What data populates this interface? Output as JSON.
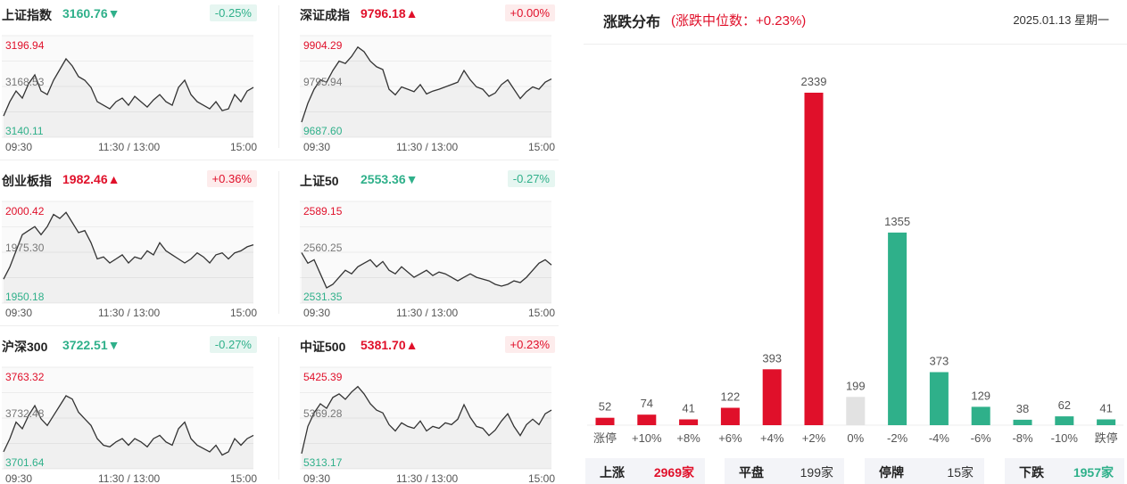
{
  "panels": [
    {
      "name": "上证指数",
      "value": "3160.76",
      "arrow": "▼",
      "dir": "down",
      "change": "-0.25%",
      "high": "3196.94",
      "mid": "3168.53",
      "low": "3140.11",
      "times": [
        "09:30",
        "11:30 / 13:00",
        "15:00"
      ]
    },
    {
      "name": "深证成指",
      "value": "9796.18",
      "arrow": "▲",
      "dir": "up",
      "change": "+0.00%",
      "high": "9904.29",
      "mid": "9795.94",
      "low": "9687.60",
      "times": [
        "09:30",
        "11:30 / 13:00",
        "15:00"
      ]
    },
    {
      "name": "创业板指",
      "value": "1982.46",
      "arrow": "▲",
      "dir": "up",
      "change": "+0.36%",
      "high": "2000.42",
      "mid": "1975.30",
      "low": "1950.18",
      "times": [
        "09:30",
        "11:30 / 13:00",
        "15:00"
      ]
    },
    {
      "name": "上证50",
      "value": "2553.36",
      "arrow": "▼",
      "dir": "down",
      "change": "-0.27%",
      "high": "2589.15",
      "mid": "2560.25",
      "low": "2531.35",
      "times": [
        "09:30",
        "11:30 / 13:00",
        "15:00"
      ]
    },
    {
      "name": "沪深300",
      "value": "3722.51",
      "arrow": "▼",
      "dir": "down",
      "change": "-0.27%",
      "high": "3763.32",
      "mid": "3732.48",
      "low": "3701.64",
      "times": [
        "09:30",
        "11:30 / 13:00",
        "15:00"
      ]
    },
    {
      "name": "中证500",
      "value": "5381.70",
      "arrow": "▲",
      "dir": "up",
      "change": "+0.23%",
      "high": "5425.39",
      "mid": "5369.28",
      "low": "5313.17",
      "times": [
        "09:30",
        "11:30 / 13:00",
        "15:00"
      ]
    }
  ],
  "distribution": {
    "title": "涨跌分布",
    "subtitle": "(涨跌中位数：+0.23%)",
    "date": "2025.01.13 星期一",
    "summary": [
      {
        "label": "上涨",
        "value": "2969家",
        "color": "#e0102a"
      },
      {
        "label": "平盘",
        "value": "199家",
        "color": "#333333"
      },
      {
        "label": "停牌",
        "value": "15家",
        "color": "#333333"
      },
      {
        "label": "下跌",
        "value": "1957家",
        "color": "#2fb08a"
      }
    ]
  },
  "colors": {
    "up": "#e0102a",
    "down": "#2fb08a",
    "flat": "#e2e2e2"
  },
  "chart_data": [
    {
      "type": "bar",
      "title": "涨跌分布",
      "categories": [
        "涨停",
        "+10%",
        "+8%",
        "+6%",
        "+4%",
        "+2%",
        "0%",
        "-2%",
        "-4%",
        "-6%",
        "-8%",
        "-10%",
        "跌停"
      ],
      "values": [
        52,
        74,
        41,
        122,
        393,
        2339,
        199,
        1355,
        373,
        129,
        38,
        62,
        41
      ],
      "bar_colors": [
        "up",
        "up",
        "up",
        "up",
        "up",
        "up",
        "flat",
        "down",
        "down",
        "down",
        "down",
        "down",
        "down"
      ],
      "ylim": [
        0,
        2339
      ]
    },
    {
      "type": "line",
      "title": "上证指数",
      "x_range": [
        "09:30",
        "15:00"
      ],
      "ylim": [
        3140.11,
        3196.94
      ],
      "y_ticks": [
        3196.94,
        3168.53,
        3140.11
      ],
      "values": [
        3152,
        3160,
        3166,
        3162,
        3170,
        3175,
        3166,
        3164,
        3172,
        3178,
        3184,
        3180,
        3174,
        3172,
        3168,
        3160,
        3158,
        3156,
        3160,
        3162,
        3158,
        3163,
        3160,
        3157,
        3161,
        3164,
        3160,
        3158,
        3168,
        3172,
        3164,
        3160,
        3158,
        3156,
        3160,
        3155,
        3156,
        3164,
        3160,
        3166,
        3168
      ]
    },
    {
      "type": "line",
      "title": "深证成指",
      "x_range": [
        "09:30",
        "15:00"
      ],
      "ylim": [
        9687.6,
        9904.29
      ],
      "y_ticks": [
        9904.29,
        9795.94,
        9687.6
      ],
      "values": [
        9720,
        9760,
        9790,
        9810,
        9805,
        9830,
        9850,
        9845,
        9860,
        9880,
        9870,
        9850,
        9838,
        9832,
        9790,
        9778,
        9795,
        9790,
        9785,
        9800,
        9780,
        9786,
        9790,
        9795,
        9800,
        9805,
        9830,
        9810,
        9795,
        9790,
        9775,
        9782,
        9800,
        9810,
        9790,
        9770,
        9785,
        9795,
        9790,
        9805,
        9812
      ]
    },
    {
      "type": "line",
      "title": "创业板指",
      "x_range": [
        "09:30",
        "15:00"
      ],
      "ylim": [
        1950.18,
        2000.42
      ],
      "y_ticks": [
        2000.42,
        1975.3,
        1950.18
      ],
      "values": [
        1962,
        1968,
        1976,
        1984,
        1986,
        1988,
        1984,
        1988,
        1994,
        1992,
        1995,
        1990,
        1985,
        1986,
        1980,
        1972,
        1973,
        1970,
        1972,
        1974,
        1970,
        1973,
        1972,
        1976,
        1974,
        1980,
        1976,
        1974,
        1972,
        1970,
        1972,
        1975,
        1973,
        1970,
        1974,
        1975,
        1972,
        1975,
        1976,
        1978,
        1979
      ]
    },
    {
      "type": "line",
      "title": "上证50",
      "x_range": [
        "09:30",
        "15:00"
      ],
      "ylim": [
        2531.35,
        2589.15
      ],
      "y_ticks": [
        2589.15,
        2560.25,
        2531.35
      ],
      "values": [
        2560,
        2554,
        2556,
        2548,
        2540,
        2542,
        2546,
        2550,
        2548,
        2552,
        2554,
        2556,
        2552,
        2555,
        2550,
        2548,
        2552,
        2549,
        2546,
        2548,
        2550,
        2547,
        2549,
        2548,
        2546,
        2544,
        2546,
        2548,
        2546,
        2545,
        2544,
        2542,
        2541,
        2542,
        2544,
        2543,
        2546,
        2550,
        2554,
        2556,
        2553
      ]
    },
    {
      "type": "line",
      "title": "沪深300",
      "x_range": [
        "09:30",
        "15:00"
      ],
      "ylim": [
        3701.64,
        3763.32
      ],
      "y_ticks": [
        3763.32,
        3732.48,
        3701.64
      ],
      "values": [
        3712,
        3720,
        3730,
        3726,
        3734,
        3740,
        3732,
        3728,
        3734,
        3740,
        3746,
        3744,
        3736,
        3732,
        3728,
        3720,
        3716,
        3715,
        3718,
        3720,
        3716,
        3720,
        3718,
        3715,
        3720,
        3722,
        3718,
        3716,
        3726,
        3730,
        3720,
        3716,
        3714,
        3712,
        3716,
        3710,
        3712,
        3720,
        3716,
        3720,
        3722
      ]
    },
    {
      "type": "line",
      "title": "中证500",
      "x_range": [
        "09:30",
        "15:00"
      ],
      "ylim": [
        5313.17,
        5425.39
      ],
      "y_ticks": [
        5425.39,
        5369.28,
        5313.17
      ],
      "values": [
        5330,
        5360,
        5375,
        5385,
        5380,
        5392,
        5396,
        5390,
        5398,
        5404,
        5396,
        5385,
        5378,
        5375,
        5362,
        5355,
        5364,
        5360,
        5358,
        5366,
        5355,
        5360,
        5358,
        5364,
        5362,
        5368,
        5384,
        5370,
        5360,
        5358,
        5350,
        5356,
        5366,
        5374,
        5360,
        5350,
        5362,
        5368,
        5362,
        5374,
        5378
      ]
    }
  ]
}
